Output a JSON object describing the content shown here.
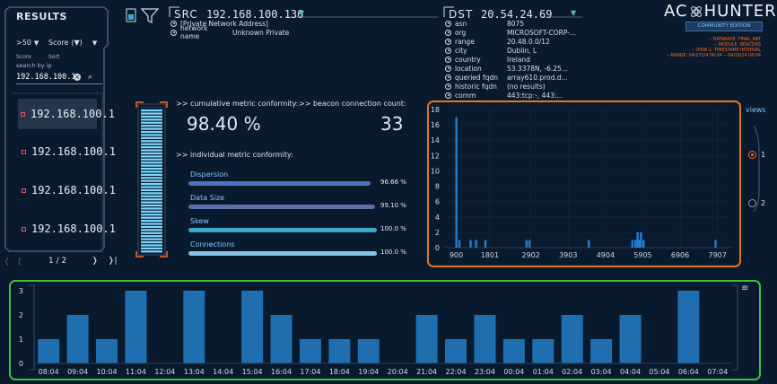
{
  "results": {
    "title": "RESULTS",
    "limit": ">50",
    "sort_field": "Score",
    "sort_dir_glyph": "(▼)",
    "score_hdr": "Score",
    "sort_hdr": "Sort",
    "search_label": "search by ip",
    "search_value": "192.168.100.1",
    "items": [
      "192.168.100.1",
      "192.168.100.1",
      "192.168.100.1",
      "192.168.100.1"
    ],
    "page": "1 / 2"
  },
  "src": {
    "label": "SRC",
    "ip": "192.168.100.136",
    "rows": [
      {
        "key": "[Private Network Address]",
        "val": ""
      },
      {
        "key": "network name",
        "val": "Unknown Private"
      }
    ]
  },
  "dst": {
    "label": "DST",
    "ip": "20.54.24.69",
    "rows": [
      {
        "key": "asn",
        "val": "8075"
      },
      {
        "key": "org",
        "val": "MICROSOFT-CORP-..."
      },
      {
        "key": "range",
        "val": "20.48.0.0/12"
      },
      {
        "key": "city",
        "val": "Dublin, L"
      },
      {
        "key": "country",
        "val": "Ireland"
      },
      {
        "key": "location",
        "val": "53.3378N, -6.25..."
      },
      {
        "key": "queried fqdn",
        "val": "array610.prod.d..."
      },
      {
        "key": "historic fqdn",
        "val": "(no results)"
      },
      {
        "key": "comm",
        "val": "443:tcp:-, 443:..."
      }
    ]
  },
  "brand": {
    "name_left": "AC",
    "name_right": "HUNTER",
    "edition": "COMMUNITY EDITION",
    "info": [
      "-- DATABASE: FINAL_RAT",
      "-- MODULE: BEACONS",
      "-- VIEW 1: TIMESTAMP INTERVAL",
      "-- RANGE: 04/27/24 08:04 -- 04/29/24 08:04"
    ],
    "accent": "#ff6a1a"
  },
  "metrics": {
    "cumulative_label": ">> cumulative metric conformity:",
    "count_label": ">> beacon connection count:",
    "cumulative_value": "98.40 %",
    "count_value": "33",
    "individual_label": ">> individual metric conformity:",
    "cumulative_fraction": 0.984,
    "items": [
      {
        "name": "Dispersion",
        "value": "96.66 %",
        "fraction": 0.9666,
        "color": "#4d73b8"
      },
      {
        "name": "Data Size",
        "value": "99.10 %",
        "fraction": 0.991,
        "color": "#5d6fa8"
      },
      {
        "name": "Skew",
        "value": "100.0 %",
        "fraction": 1.0,
        "color": "#3fa7c9"
      },
      {
        "name": "Connections",
        "value": "100.0 %",
        "fraction": 1.0,
        "color": "#87c4e6"
      }
    ]
  },
  "views": {
    "title": "views",
    "options": [
      "1",
      "2"
    ],
    "selected": "1"
  },
  "chart_data": [
    {
      "type": "bar",
      "xlabel": "",
      "ylabel": "",
      "ylim": [
        0,
        18
      ],
      "yticks": [
        0,
        2,
        4,
        6,
        8,
        10,
        12,
        14,
        16,
        18
      ],
      "xlim": [
        600,
        8300
      ],
      "xticks": [
        900,
        1801,
        2902,
        3903,
        4904,
        5905,
        6906,
        7907
      ],
      "x": [
        900,
        980,
        1280,
        1430,
        1680,
        2780,
        2860,
        4450,
        5620,
        5700,
        5760,
        5800,
        5850,
        5920,
        7850
      ],
      "values": [
        17,
        1,
        1,
        1,
        1,
        1,
        1,
        1,
        1,
        1,
        2,
        1,
        2,
        1,
        1
      ],
      "color": "#1f7fd0",
      "border": "#e07a1f"
    },
    {
      "type": "bar",
      "xlabel": "",
      "ylabel": "",
      "ylim": [
        0,
        3
      ],
      "yticks": [
        0,
        1,
        2,
        3
      ],
      "categories": [
        "08:04",
        "09:04",
        "10:04",
        "11:04",
        "12:04",
        "13:04",
        "14:04",
        "15:04",
        "16:04",
        "17:04",
        "18:04",
        "19:04",
        "20:04",
        "21:04",
        "22:04",
        "23:04",
        "00:04",
        "01:04",
        "02:04",
        "03:04",
        "04:04",
        "05:04",
        "06:04",
        "07:04"
      ],
      "values": [
        1,
        2,
        1,
        3,
        0,
        3,
        0,
        3,
        2,
        1,
        1,
        1,
        0,
        2,
        1,
        2,
        1,
        1,
        2,
        1,
        2,
        0,
        3,
        0
      ],
      "color": "#1f6fb0",
      "border": "#3fbf3f"
    }
  ],
  "icons": {
    "menu": "hamburger-menu-icon"
  }
}
